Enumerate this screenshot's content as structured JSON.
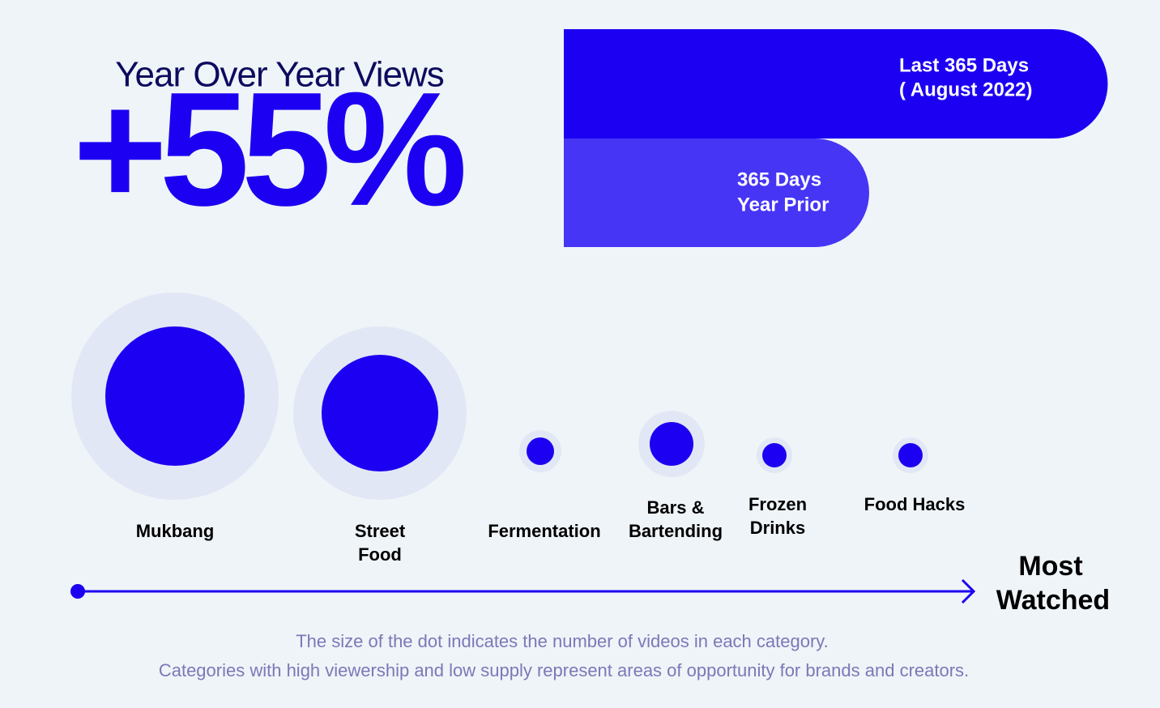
{
  "header": {
    "title": "Year Over Year Views",
    "stat": "+55%"
  },
  "bars": [
    {
      "lines": [
        "Last 365 Days",
        "( August 2022)"
      ]
    },
    {
      "lines": [
        "365 Days",
        "Year Prior"
      ]
    }
  ],
  "categories": [
    {
      "lines": [
        "Mukbang"
      ]
    },
    {
      "lines": [
        "Street",
        "Food"
      ]
    },
    {
      "lines": [
        "Fermentation"
      ]
    },
    {
      "lines": [
        "Bars &",
        "Bartending"
      ]
    },
    {
      "lines": [
        "Frozen",
        "Drinks"
      ]
    },
    {
      "lines": [
        "Food Hacks"
      ]
    }
  ],
  "axis_label": [
    "Most",
    "Watched"
  ],
  "footnote": [
    "The size of the dot indicates the number of videos in each category.",
    "Categories with high viewership and low supply represent areas of opportunity for brands and creators."
  ]
}
